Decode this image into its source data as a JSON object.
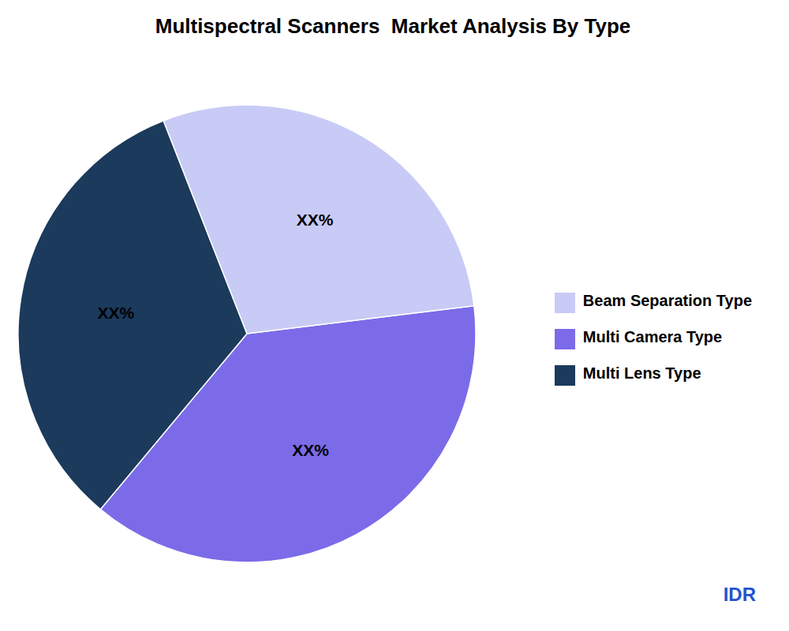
{
  "chart_data": {
    "type": "pie",
    "title": "Multispectral Scanners  Market Analysis By Type",
    "categories": [
      "Multi Camera Type",
      "Multi Lens Type",
      "Beam Separation Type"
    ],
    "values": [
      38,
      33,
      29
    ],
    "value_labels": [
      "XX%",
      "XX%",
      "XX%"
    ],
    "colors": [
      "#7B6BE8",
      "#1B3A5C",
      "#C8CBF5"
    ],
    "data_labels": true,
    "legend": "right",
    "annotations": [
      {
        "text": "IDR",
        "color": "#2255CC"
      }
    ]
  }
}
